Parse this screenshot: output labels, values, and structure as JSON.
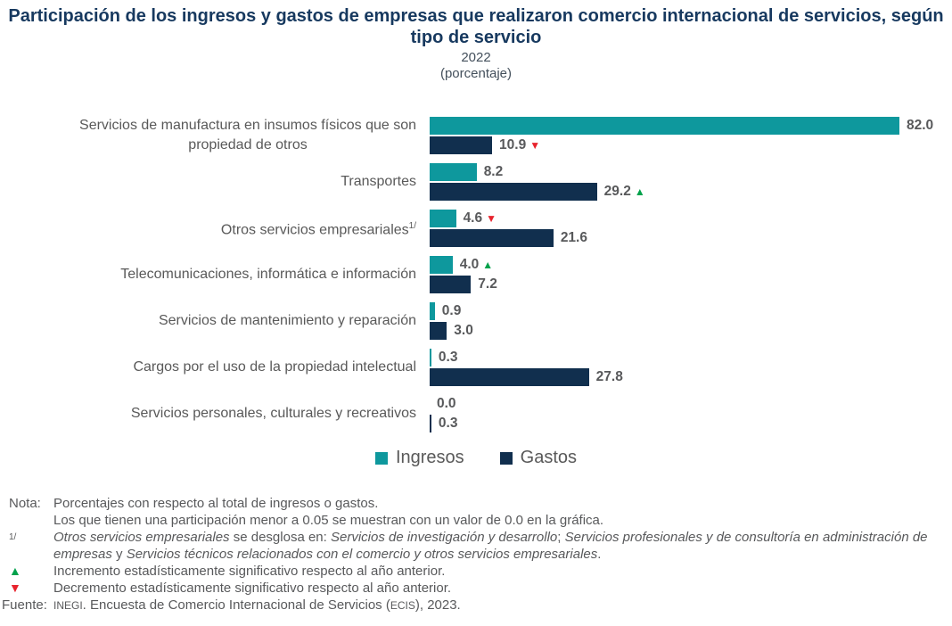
{
  "header": {
    "title": "Participación de los ingresos y gastos de empresas que realizaron comercio internacional de servicios, según tipo de servicio",
    "year": "2022",
    "unit": "(porcentaje)"
  },
  "chart_data": {
    "type": "bar",
    "orientation": "horizontal",
    "value_axis": {
      "min": 0,
      "max_shown_value": 82.0,
      "grid": false,
      "axis_labels_hidden": true
    },
    "categories": [
      {
        "label": "Servicios de manufactura en insumos físicos que son\npropiedad de otros"
      },
      {
        "label": "Transportes"
      },
      {
        "label": "Otros servicios empresariales",
        "sup": "1/"
      },
      {
        "label": "Telecomunicaciones, informática e información"
      },
      {
        "label": "Servicios de mantenimiento y reparación"
      },
      {
        "label": "Cargos por el uso de la propiedad intelectual"
      },
      {
        "label": "Servicios personales, culturales y recreativos"
      }
    ],
    "series": [
      {
        "name": "Ingresos",
        "color": "#0E989D",
        "values": [
          "82.0",
          "8.2",
          "4.6",
          "4.0",
          "0.9",
          "0.3",
          "0.0"
        ],
        "markers": [
          null,
          null,
          "down",
          "up",
          null,
          null,
          null
        ]
      },
      {
        "name": "Gastos",
        "color": "#112F4E",
        "values": [
          "10.9",
          "29.2",
          "21.6",
          "7.2",
          "3.0",
          "27.8",
          "0.3"
        ],
        "markers": [
          "down",
          "up",
          null,
          null,
          null,
          null,
          null
        ]
      }
    ],
    "legend_position": "bottom-center"
  },
  "legend": {
    "items": [
      {
        "label": "Ingresos",
        "color": "#0E989D"
      },
      {
        "label": "Gastos",
        "color": "#112F4E"
      }
    ]
  },
  "icons": {
    "increase": "▲",
    "decrease": "▼"
  },
  "colors": {
    "ingresos": "#0E989D",
    "gastos": "#112F4E",
    "title": "#17395F",
    "subtitle": "#44505C",
    "text": "#58595B",
    "increase": "#00A14B",
    "decrease": "#E8232D"
  },
  "notes": {
    "nota_label": "Nota:",
    "nota_lines": [
      "Porcentajes con respecto al total de ingresos o gastos.",
      "Los que tienen una participación menor a 0.05 se muestran con un valor de 0.0 en la gráfica."
    ],
    "footnote_marker": "1/",
    "footnote_segments": [
      {
        "t": "Otros servicios empresariales",
        "s": "i"
      },
      {
        "t": " se desglosa en: "
      },
      {
        "t": "Servicios de investigación y desarrollo",
        "s": "i"
      },
      {
        "t": "; "
      },
      {
        "t": "Servicios profesionales y de consultoría en administración de empresas",
        "s": "i"
      },
      {
        "t": " y "
      },
      {
        "t": "Servicios técnicos relacionados con el comercio y otros servicios empresariales",
        "s": "i"
      },
      {
        "t": "."
      }
    ],
    "increment_text": "Incremento estadísticamente significativo respecto al año anterior.",
    "decrement_text": "Decremento estadísticamente significativo respecto al año anterior.",
    "fuente_label": "Fuente:",
    "fuente_segments": [
      {
        "t": "INEGI",
        "s": "c"
      },
      {
        "t": ". Encuesta de Comercio Internacional de Servicios ("
      },
      {
        "t": "ECIS",
        "s": "c"
      },
      {
        "t": "), 2023."
      }
    ]
  }
}
